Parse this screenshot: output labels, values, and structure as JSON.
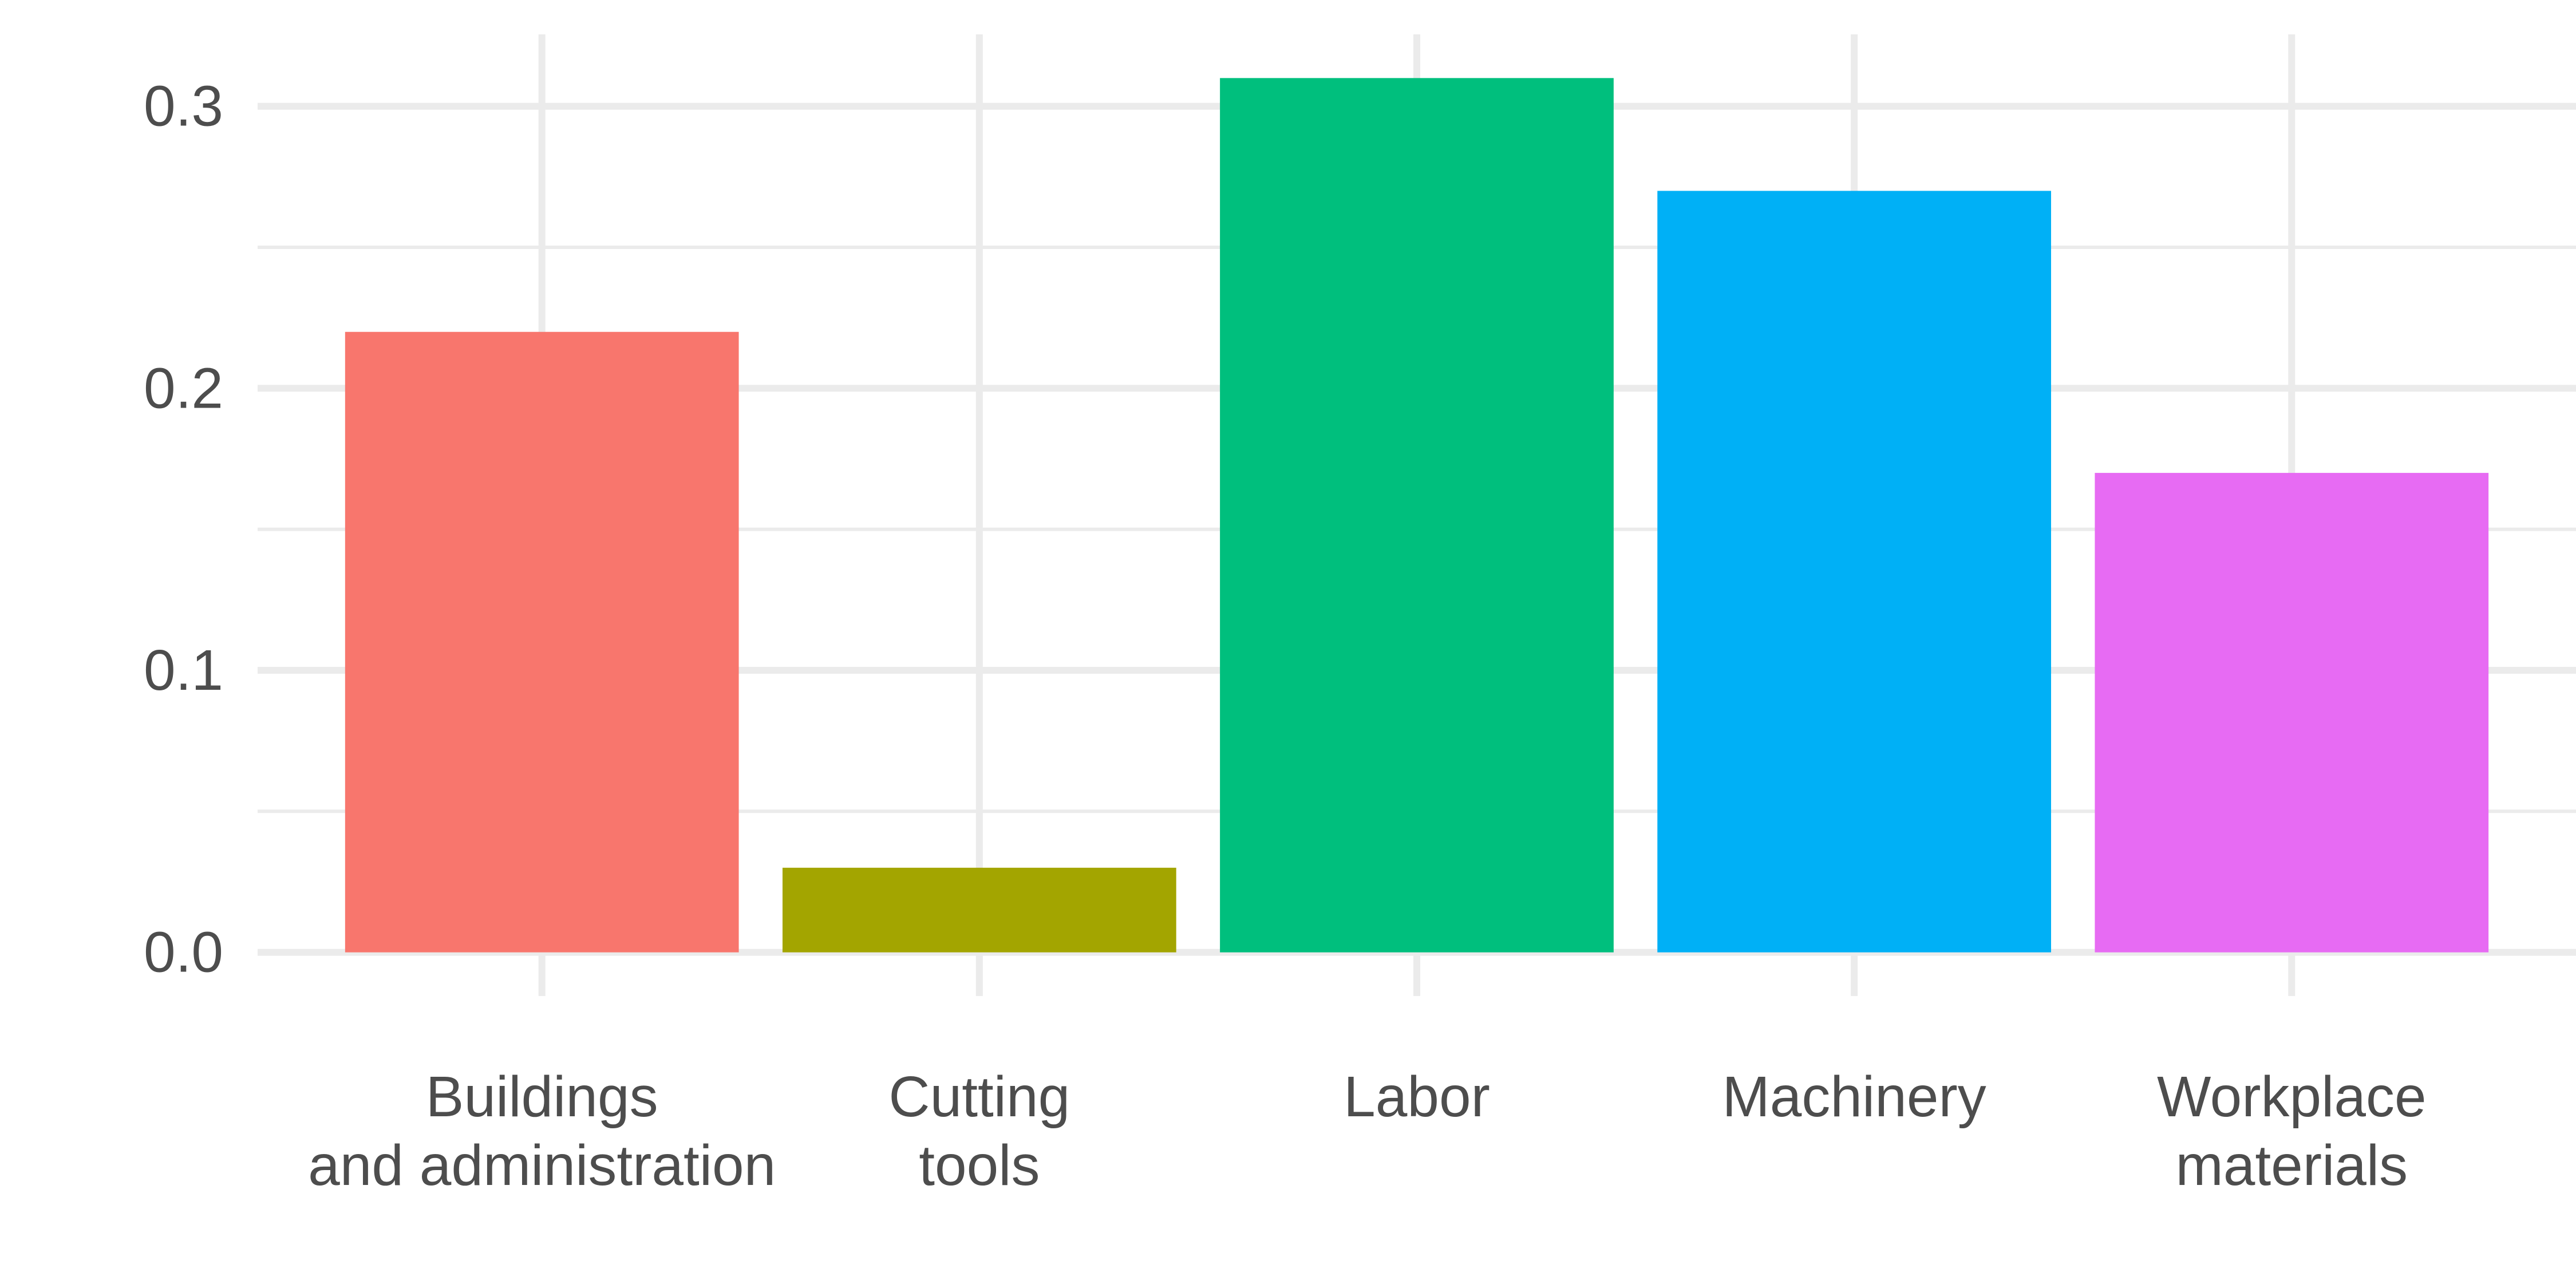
{
  "chart_data": {
    "type": "bar",
    "categories": [
      [
        "Buildings",
        "and administration"
      ],
      [
        "Cutting",
        "tools"
      ],
      [
        "Labor"
      ],
      [
        "Machinery"
      ],
      [
        "Workplace",
        "materials"
      ]
    ],
    "values": [
      0.22,
      0.03,
      0.31,
      0.27,
      0.17
    ],
    "colors": [
      "#F8766D",
      "#A3A500",
      "#00BF7D",
      "#00B0F6",
      "#E76BF3"
    ],
    "title": "",
    "xlabel": "",
    "ylabel": "",
    "ylim": [
      -0.0155,
      0.3255
    ],
    "yticks": [
      0.0,
      0.1,
      0.2,
      0.3
    ],
    "ytick_labels": [
      "0.0",
      "0.1",
      "0.2",
      "0.3"
    ],
    "minor_yticks": [
      0.05,
      0.15,
      0.25
    ],
    "grid": true,
    "legend": "none",
    "style": {
      "background": "#ffffff",
      "grid_color": "#ebebeb",
      "text_color": "#4d4d4d"
    }
  }
}
